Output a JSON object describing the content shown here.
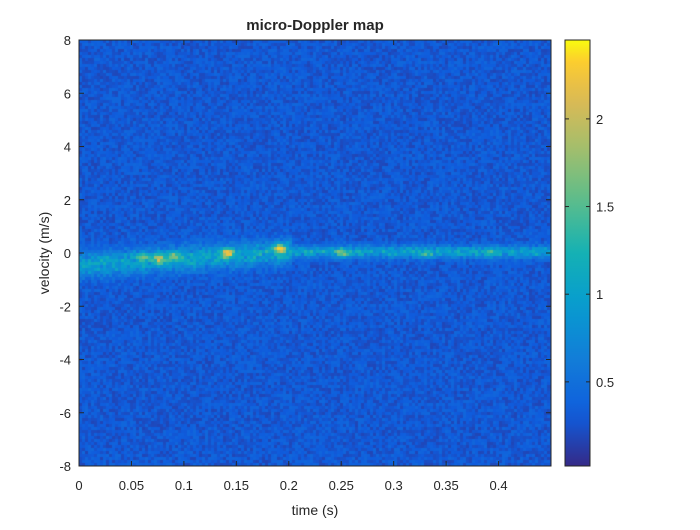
{
  "chart_data": {
    "type": "heatmap",
    "title": "micro-Doppler map",
    "xlabel": "time (s)",
    "ylabel": "velocity (m/s)",
    "xlim": [
      0,
      0.45
    ],
    "ylim": [
      -8,
      8
    ],
    "x_ticks": [
      "0",
      "0.05",
      "0.1",
      "0.15",
      "0.2",
      "0.25",
      "0.3",
      "0.35",
      "0.4"
    ],
    "y_ticks": [
      "8",
      "6",
      "4",
      "2",
      "0",
      "-2",
      "-4",
      "-6",
      "-8"
    ],
    "colorbar": {
      "range": [
        0.02,
        2.45
      ],
      "ticks": [
        "2",
        "1.5",
        "1",
        "0.5"
      ],
      "colormap": "parula"
    },
    "background_level": 0.3,
    "ridge": {
      "velocity_start": -0.4,
      "velocity_end": 0.1,
      "level": 0.75
    },
    "hot_spots": [
      {
        "t": 0.06,
        "v": -0.1,
        "value": 1.4
      },
      {
        "t": 0.075,
        "v": -0.15,
        "value": 1.7
      },
      {
        "t": 0.09,
        "v": -0.05,
        "value": 1.5
      },
      {
        "t": 0.14,
        "v": 0.05,
        "value": 2.0
      },
      {
        "t": 0.19,
        "v": 0.2,
        "value": 2.1
      },
      {
        "t": 0.25,
        "v": 0.05,
        "value": 1.6
      },
      {
        "t": 0.33,
        "v": 0.0,
        "value": 1.3
      },
      {
        "t": 0.39,
        "v": 0.05,
        "value": 1.1
      }
    ]
  }
}
